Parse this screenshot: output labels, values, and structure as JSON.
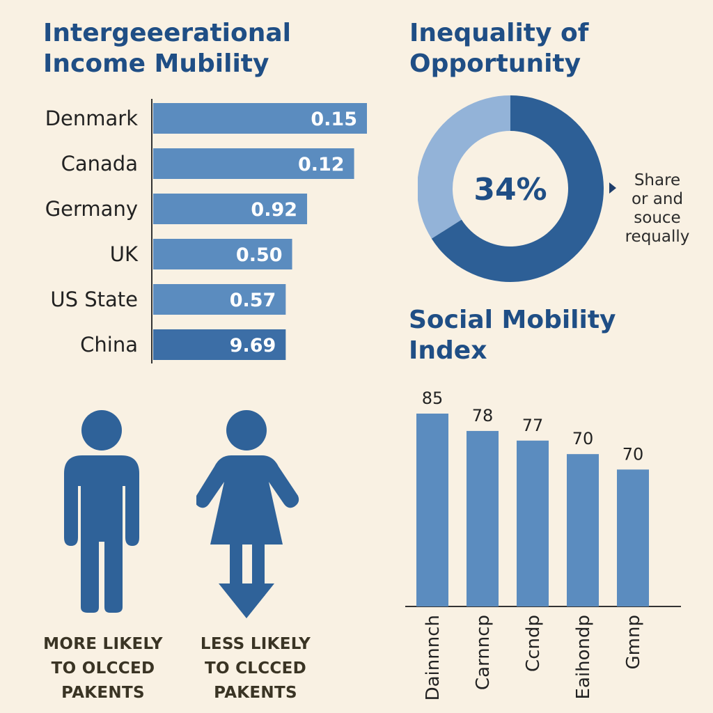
{
  "colors": {
    "background": "#f9f1e3",
    "title": "#1f4e85",
    "bar_light": "#5b8cbf",
    "bar_dark": "#3c6ea6",
    "donut_light": "#93b3d8",
    "donut_dark": "#2d5f96",
    "donut_darkest": "#1f4e85",
    "figure": "#2f6299"
  },
  "income_mobility": {
    "title_line1": "Intergeeerational",
    "title_line2": "Income Mubility"
  },
  "inequality": {
    "title_line1": "Inequality of",
    "title_line2": "Opportunity",
    "center_label": "34%",
    "note_lines": [
      "Share",
      "or and",
      "souce",
      "requally"
    ]
  },
  "social_mobility": {
    "title_line1": "Social Mobility",
    "title_line2": "Index"
  },
  "figures": {
    "male_icon": "person-male-icon",
    "female_icon": "person-female-icon",
    "male_caption": [
      "MORE LIKELY",
      "TO OLCCED",
      "PAKENTS"
    ],
    "female_caption": [
      "LESS LIKELY",
      "TO CLCCED",
      "PAKENTS"
    ]
  },
  "chart_data": [
    {
      "type": "bar",
      "orientation": "horizontal",
      "categories": [
        "Denmark",
        "Canada",
        "Germany",
        "UK",
        "US State",
        "China"
      ],
      "values": [
        0.15,
        0.12,
        0.92,
        0.5,
        0.57,
        9.69
      ],
      "value_labels": [
        "0.15",
        "0.12",
        "0.92",
        "0.50",
        "0.57",
        "9.69"
      ],
      "relative_lengths": [
        1.0,
        0.94,
        0.72,
        0.65,
        0.62,
        0.62
      ]
    },
    {
      "type": "pie",
      "variant": "donut",
      "slices": [
        {
          "label": "34%",
          "value": 34,
          "color": "#93b3d8"
        },
        {
          "label": "",
          "value": 66,
          "color": "#2d5f96"
        }
      ]
    },
    {
      "type": "bar",
      "orientation": "vertical",
      "categories": [
        "Dainnnch",
        "Carnncp",
        "Ccndp",
        "Eaihondp",
        "Gmnp"
      ],
      "values": [
        85,
        78,
        77,
        70,
        70
      ],
      "value_labels": [
        "85",
        "78",
        "77",
        "70",
        "70"
      ],
      "relative_heights": [
        1.0,
        0.91,
        0.86,
        0.79,
        0.71
      ]
    }
  ]
}
